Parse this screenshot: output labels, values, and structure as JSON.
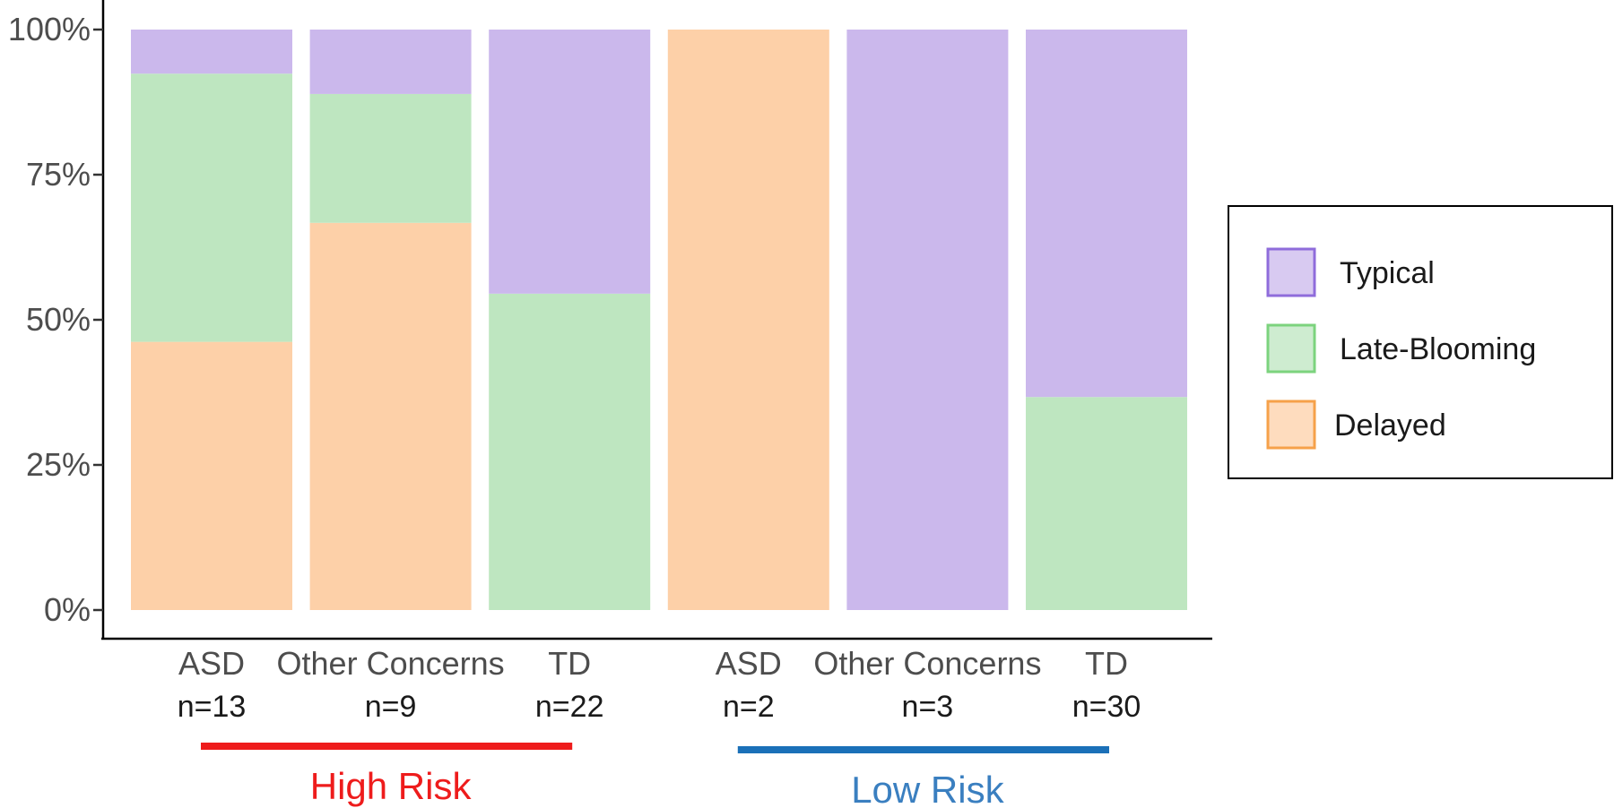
{
  "chart_data": {
    "type": "bar",
    "stacked": true,
    "title": "",
    "xlabel": "",
    "ylabel": "",
    "ylim": [
      0,
      100
    ],
    "y_ticks": [
      "0%",
      "25%",
      "50%",
      "75%",
      "100%"
    ],
    "y_tick_values": [
      0,
      25,
      50,
      75,
      100
    ],
    "categories": [
      {
        "label": "ASD",
        "n": "n=13",
        "group": "High Risk"
      },
      {
        "label": "Other Concerns",
        "n": "n=9",
        "group": "High Risk"
      },
      {
        "label": "TD",
        "n": "n=22",
        "group": "High Risk"
      },
      {
        "label": "ASD",
        "n": "n=2",
        "group": "Low Risk"
      },
      {
        "label": "Other Concerns",
        "n": "n=3",
        "group": "Low Risk"
      },
      {
        "label": "TD",
        "n": "n=30",
        "group": "Low Risk"
      }
    ],
    "series": [
      {
        "name": "Delayed",
        "color": "#fdd0a8",
        "border": "#f6a14a",
        "values": [
          46.2,
          66.7,
          0,
          100,
          0,
          0
        ]
      },
      {
        "name": "Late-Blooming",
        "color": "#bee6c0",
        "border": "#7cd37e",
        "values": [
          46.2,
          22.2,
          54.5,
          0,
          0,
          36.7
        ]
      },
      {
        "name": "Typical",
        "color": "#cbb8ec",
        "border": "#8f6cdb",
        "values": [
          7.6,
          11.1,
          45.5,
          0,
          100,
          63.3
        ]
      }
    ],
    "groups": [
      {
        "name": "High Risk",
        "color": "#ee1c1c",
        "members": [
          0,
          1,
          2
        ]
      },
      {
        "name": "Low Risk",
        "color": "#1b70b8",
        "label_color": "#3a7fc0",
        "members": [
          3,
          4,
          5
        ]
      }
    ],
    "legend": {
      "position": "right",
      "items": [
        "Typical",
        "Late-Blooming",
        "Delayed"
      ]
    }
  }
}
